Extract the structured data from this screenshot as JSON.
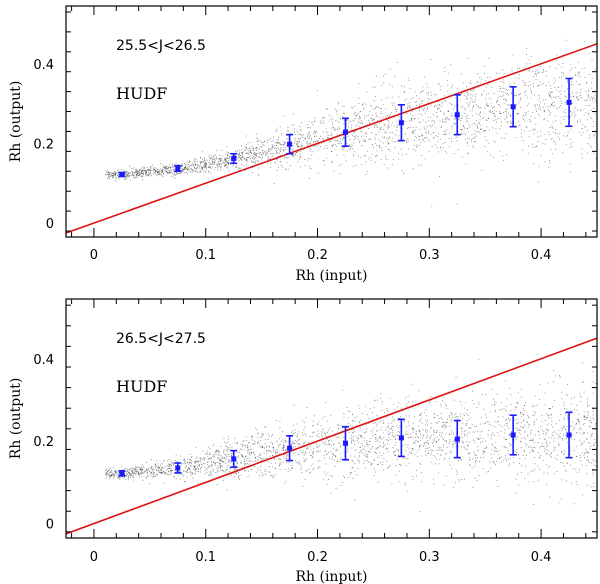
{
  "chart_data": [
    {
      "type": "scatter",
      "panel": "top",
      "xlabel": "Rh (input)",
      "ylabel": "Rh (output)",
      "xlim": [
        -0.025,
        0.45
      ],
      "ylim": [
        -0.035,
        0.545
      ],
      "xticks": [
        0,
        0.1,
        0.2,
        0.3,
        0.4
      ],
      "xtick_labels": [
        "0",
        "0.1",
        "0.2",
        "0.3",
        "0.4"
      ],
      "yticks": [
        0,
        0.2,
        0.4
      ],
      "ytick_labels": [
        "0",
        "0.2",
        "0.4"
      ],
      "annotations": [
        "25.5<J<26.5",
        "HUDF"
      ],
      "reference_line": {
        "label": "y = x",
        "color": "#dd1111"
      },
      "series": [
        {
          "name": "binned medians",
          "color": "#1a1aff",
          "x": [
            0.025,
            0.075,
            0.125,
            0.175,
            0.225,
            0.275,
            0.325,
            0.375,
            0.425
          ],
          "y": [
            0.122,
            0.137,
            0.162,
            0.198,
            0.228,
            0.252,
            0.272,
            0.292,
            0.303
          ],
          "err_low": [
            0.005,
            0.007,
            0.012,
            0.024,
            0.035,
            0.045,
            0.05,
            0.05,
            0.06
          ],
          "err_high": [
            0.005,
            0.007,
            0.012,
            0.024,
            0.035,
            0.045,
            0.05,
            0.05,
            0.06
          ]
        }
      ]
    },
    {
      "type": "scatter",
      "panel": "bottom",
      "xlabel": "Rh (input)",
      "ylabel": "Rh (output)",
      "xlim": [
        -0.025,
        0.45
      ],
      "ylim": [
        -0.035,
        0.545
      ],
      "xticks": [
        0,
        0.1,
        0.2,
        0.3,
        0.4
      ],
      "xtick_labels": [
        "0",
        "0.1",
        "0.2",
        "0.3",
        "0.4"
      ],
      "yticks": [
        0,
        0.2,
        0.4
      ],
      "ytick_labels": [
        "0",
        "0.2",
        "0.4"
      ],
      "annotations": [
        "26.5<J<27.5",
        "HUDF"
      ],
      "reference_line": {
        "label": "y = x",
        "color": "#dd1111"
      },
      "series": [
        {
          "name": "binned medians",
          "color": "#1a1aff",
          "x": [
            0.025,
            0.075,
            0.125,
            0.175,
            0.225,
            0.275,
            0.325,
            0.375,
            0.425
          ],
          "y": [
            0.122,
            0.135,
            0.157,
            0.183,
            0.195,
            0.208,
            0.205,
            0.215,
            0.215
          ],
          "err_low": [
            0.006,
            0.012,
            0.02,
            0.03,
            0.04,
            0.045,
            0.045,
            0.048,
            0.055
          ],
          "err_high": [
            0.006,
            0.012,
            0.02,
            0.03,
            0.04,
            0.045,
            0.045,
            0.048,
            0.055
          ]
        }
      ]
    }
  ]
}
